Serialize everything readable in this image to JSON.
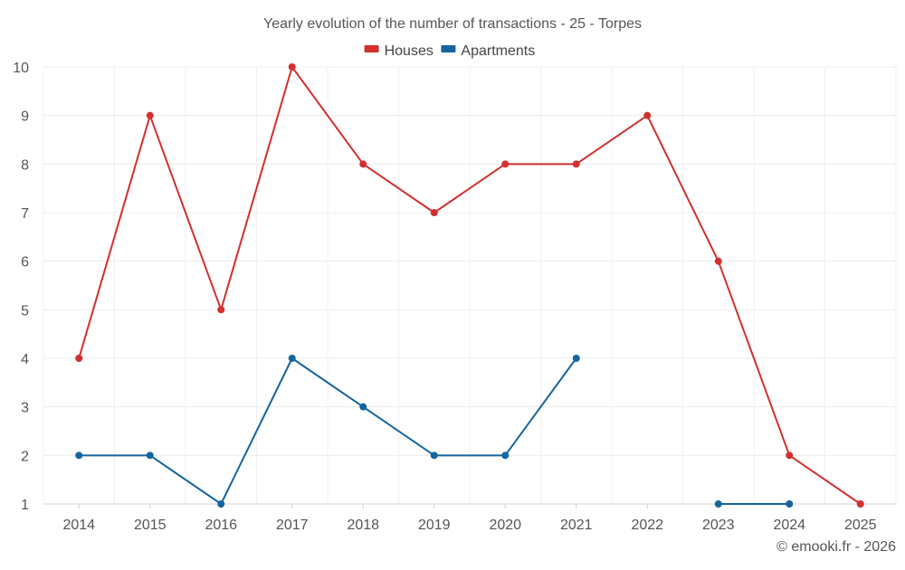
{
  "chart_data": {
    "type": "line",
    "title": "Yearly evolution of the number of transactions - 25 - Torpes",
    "categories": [
      "2014",
      "2015",
      "2016",
      "2017",
      "2018",
      "2019",
      "2020",
      "2021",
      "2022",
      "2023",
      "2024",
      "2025"
    ],
    "ylim": [
      1,
      10
    ],
    "yticks": [
      1,
      2,
      3,
      4,
      5,
      6,
      7,
      8,
      9,
      10
    ],
    "grid": true,
    "legend_position": "top-center",
    "series": [
      {
        "name": "Houses",
        "color": "#d32f2f",
        "values": [
          4,
          9,
          5,
          10,
          8,
          7,
          8,
          8,
          9,
          6,
          2,
          1
        ]
      },
      {
        "name": "Apartments",
        "color": "#1565a0",
        "values": [
          2,
          2,
          1,
          4,
          3,
          2,
          2,
          4,
          null,
          1,
          1,
          null
        ]
      }
    ]
  },
  "credit": "© emooki.fr - 2026"
}
